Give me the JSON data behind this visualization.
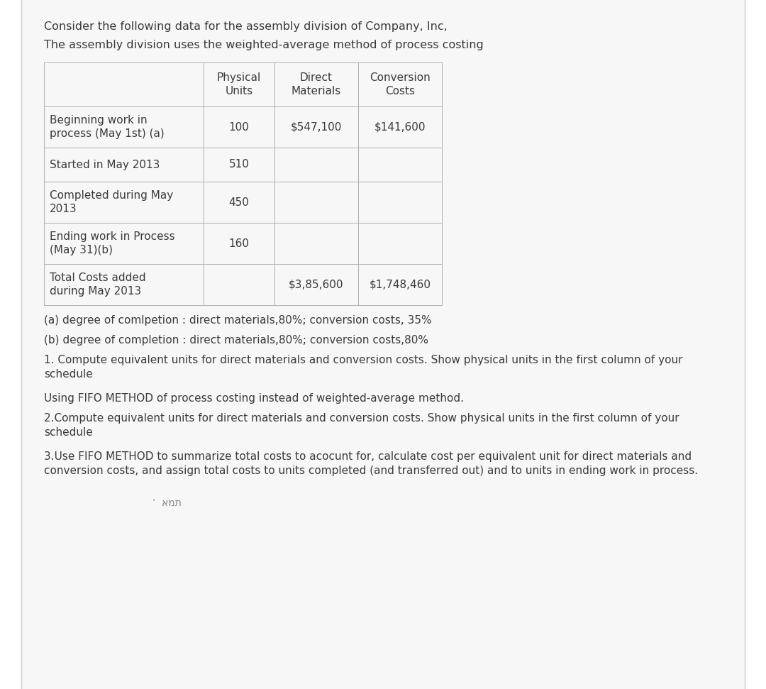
{
  "title1": "Consider the following data for the assembly division of Company, Inc,",
  "title2": "The assembly division uses the weighted-average method of process costing",
  "bg_color": "#ffffff",
  "content_bg": "#f7f7f7",
  "table": {
    "col_headers": [
      "",
      "Physical\nUnits",
      "Direct\nMaterials",
      "Conversion\nCosts"
    ],
    "rows": [
      [
        "Beginning work in\nprocess (May 1st) (a)",
        "100",
        "$547,100",
        "$141,600"
      ],
      [
        "Started in May 2013",
        "510",
        "",
        ""
      ],
      [
        "Completed during May\n2013",
        "450",
        "",
        ""
      ],
      [
        "Ending work in Process\n(May 31)(b)",
        "160",
        "",
        ""
      ],
      [
        "Total Costs added\nduring May 2013",
        "",
        "$3,85,600",
        "$1,748,460"
      ]
    ]
  },
  "note_a": "(a) degree of comlpetion : direct materials,80%; conversion costs, 35%",
  "note_b": "(b) degree of completion : direct materials,80%; conversion costs,80%",
  "q1": "1. Compute equivalent units for direct materials and conversion costs. Show physical units in the first column of your\nschedule",
  "q_fifo": "Using FIFO METHOD of process costing instead of weighted-average method.",
  "q2": "2.Compute equivalent units for direct materials and conversion costs. Show physical units in the first column of your\nschedule",
  "q3": "3.Use FIFO METHOD to summarize total costs to acocunt for, calculate cost per equivalent unit for direct materials and\nconversion costs, and assign total costs to units completed (and transferred out) and to units in ending work in process.",
  "watermark": "’  אמת",
  "font_size_title": 11.5,
  "font_size_table": 11,
  "font_size_notes": 11,
  "text_color": "#3a3a3a",
  "table_border_color": "#b0b0b0",
  "cell_bg": "#f7f7f7",
  "side_border_color": "#cccccc"
}
